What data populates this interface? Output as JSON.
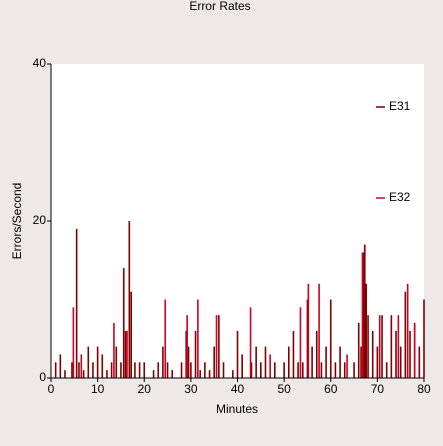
{
  "chart_data": {
    "type": "bar",
    "title": "Error Rates",
    "x_label": "Minutes",
    "y_label": "Errors/Second",
    "xlim": [
      0,
      80
    ],
    "xticks": [
      0,
      10,
      20,
      30,
      40,
      50,
      60,
      70,
      80
    ],
    "ylim": [
      0,
      40
    ],
    "yticks": [
      0,
      20,
      40
    ],
    "legend": "right",
    "series": [
      {
        "name": "E31",
        "color": "#800000",
        "x": [
          1,
          2,
          3,
          4.5,
          5.5,
          6,
          7,
          8,
          9,
          10,
          11,
          12,
          13,
          14,
          15,
          15.6,
          16,
          16.8,
          17.2,
          18,
          19,
          20,
          22,
          23,
          24,
          25,
          26,
          28,
          29,
          29.5,
          30,
          31,
          32,
          33,
          34,
          35,
          36,
          37,
          39,
          40,
          41,
          43,
          44,
          45,
          46,
          48,
          50,
          51,
          52,
          53,
          54,
          55,
          56,
          57,
          58,
          59,
          60,
          61,
          62,
          63,
          65,
          66,
          66.5,
          67,
          67.3,
          67.6,
          68,
          69,
          70,
          71,
          72,
          73,
          74,
          75,
          76,
          77,
          78,
          79,
          80
        ],
        "values": [
          2,
          3,
          1,
          2,
          19,
          2,
          1,
          4,
          2,
          4,
          3,
          1,
          2,
          4,
          2,
          14,
          6,
          20,
          11,
          2,
          2,
          2,
          1,
          2,
          4,
          2,
          1,
          2,
          6,
          4,
          2,
          6,
          1,
          2,
          1,
          4,
          8,
          2,
          1,
          6,
          3,
          2,
          4,
          2,
          4,
          2,
          2,
          4,
          6,
          2,
          2,
          10,
          4,
          6,
          2,
          4,
          10,
          2,
          4,
          2,
          2,
          7,
          4,
          16,
          17,
          12,
          8,
          6,
          4,
          8,
          2,
          8,
          6,
          4,
          11,
          6,
          7,
          4,
          10
        ]
      },
      {
        "name": "E32",
        "color": "#cc0022",
        "x": [
          4.8,
          6.5,
          13.5,
          16.3,
          24.5,
          29.2,
          31.5,
          35.5,
          42.8,
          47,
          53.5,
          55.2,
          57.5,
          63.5,
          66.8,
          70.5,
          74.5,
          76.5,
          78
        ],
        "values": [
          9,
          3,
          7,
          6,
          10,
          8,
          10,
          8,
          9,
          3,
          9,
          12,
          12,
          3,
          16,
          8,
          8,
          12,
          7
        ]
      }
    ]
  }
}
